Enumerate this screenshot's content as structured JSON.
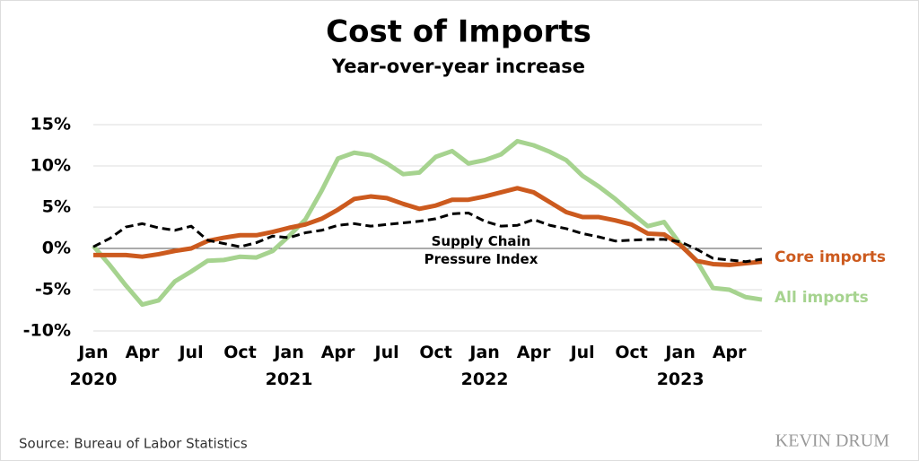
{
  "chart_data": {
    "type": "line",
    "title": "Cost of Imports",
    "subtitle": "Year-over-year increase",
    "source": "Source: Bureau of Labor Statistics",
    "credit": "KEVIN DRUM",
    "categories": [
      "Jan 2020",
      null,
      null,
      "Apr",
      null,
      null,
      "Jul",
      null,
      null,
      "Oct",
      null,
      null,
      "Jan 2021",
      null,
      null,
      "Apr",
      null,
      null,
      "Jul",
      null,
      null,
      "Oct",
      null,
      null,
      "Jan 2022",
      null,
      null,
      "Apr",
      null,
      null,
      "Jul",
      null,
      null,
      "Oct",
      null,
      null,
      "Jan 2023",
      null,
      null,
      "Apr",
      null,
      null
    ],
    "ylim": [
      -10,
      15
    ],
    "yticks": [
      {
        "value": -10,
        "label": "-10%"
      },
      {
        "value": -5,
        "label": "-5%"
      },
      {
        "value": 0,
        "label": "0%"
      },
      {
        "value": 5,
        "label": "5%"
      },
      {
        "value": 10,
        "label": "10%"
      },
      {
        "value": 15,
        "label": "15%"
      }
    ],
    "grid": true,
    "series": [
      {
        "name": "All imports",
        "color": "#a6d38f",
        "dashed": false,
        "values": [
          0.3,
          -2,
          -4.5,
          -6.8,
          -6.3,
          -4,
          -2.8,
          -1.5,
          -1.4,
          -1,
          -1.1,
          -0.3,
          1.5,
          3.5,
          7,
          10.9,
          11.6,
          11.3,
          10.3,
          9,
          9.2,
          11.1,
          11.8,
          10.3,
          10.7,
          11.4,
          13,
          12.5,
          11.7,
          10.7,
          8.8,
          7.5,
          6,
          4.3,
          2.7,
          3.2,
          0.5,
          -1.5,
          -4.8,
          -5,
          -5.9,
          -6.2
        ]
      },
      {
        "name": "Core imports",
        "color": "#cc5a1e",
        "dashed": false,
        "values": [
          -0.8,
          -0.8,
          -0.8,
          -1,
          -0.7,
          -0.3,
          0,
          0.9,
          1.3,
          1.6,
          1.6,
          2,
          2.5,
          2.9,
          3.6,
          4.7,
          6,
          6.3,
          6.1,
          5.4,
          4.8,
          5.2,
          5.9,
          5.9,
          6.3,
          6.8,
          7.3,
          6.8,
          5.6,
          4.4,
          3.8,
          3.8,
          3.4,
          2.9,
          1.8,
          1.7,
          0.4,
          -1.5,
          -1.9,
          -2,
          -1.8,
          -1.6
        ]
      },
      {
        "name": "Supply Chain Pressure Index",
        "color": "#000000",
        "dashed": true,
        "values": [
          0.2,
          1.2,
          2.6,
          3.0,
          2.5,
          2.2,
          2.7,
          1.0,
          0.6,
          0.2,
          0.7,
          1.5,
          1.3,
          1.9,
          2.2,
          2.8,
          3,
          2.7,
          2.9,
          3.1,
          3.3,
          3.6,
          4.2,
          4.3,
          3.3,
          2.7,
          2.8,
          3.5,
          2.8,
          2.4,
          1.8,
          1.4,
          0.9,
          1.0,
          1.1,
          1.1,
          0.8,
          -0.1,
          -1.2,
          -1.4,
          -1.6,
          -1.3
        ]
      }
    ]
  }
}
